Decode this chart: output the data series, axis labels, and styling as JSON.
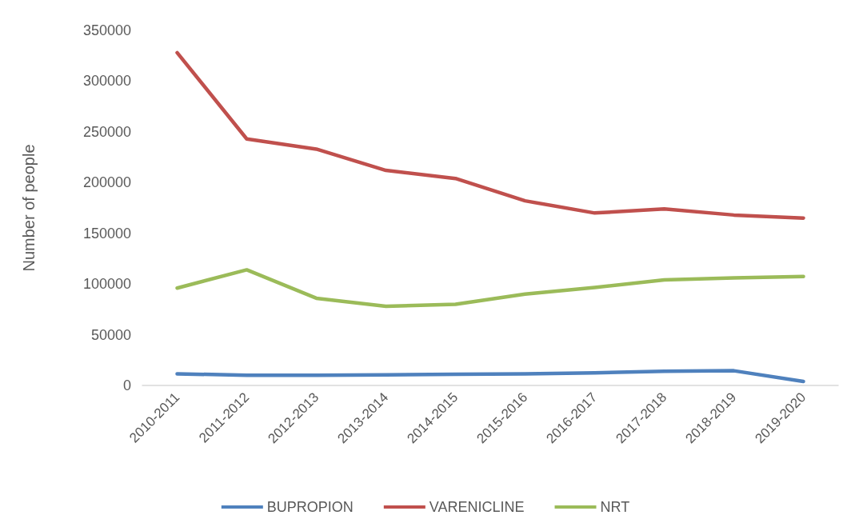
{
  "chart_data": {
    "type": "line",
    "ylabel": "Number of people",
    "categories": [
      "2010-2011",
      "2011-2012",
      "2012-2013",
      "2013-2014",
      "2014-2015",
      "2015-2016",
      "2016-2017",
      "2017-2018",
      "2018-2019",
      "2019-2020"
    ],
    "series": [
      {
        "name": "BUPROPION",
        "color": "#4f81bd",
        "values": [
          11500,
          10000,
          10000,
          10500,
          11000,
          11500,
          12500,
          14000,
          14500,
          4000
        ]
      },
      {
        "name": "VARENICLINE",
        "color": "#c0504d",
        "values": [
          328000,
          243000,
          233000,
          212000,
          204000,
          182000,
          170000,
          174000,
          168000,
          165000
        ]
      },
      {
        "name": "NRT",
        "color": "#9bbb59",
        "values": [
          96000,
          114000,
          86000,
          78000,
          80000,
          90000,
          96500,
          104000,
          106000,
          107500
        ]
      }
    ],
    "ylim": [
      0,
      350000
    ],
    "yticks": [
      0,
      50000,
      100000,
      150000,
      200000,
      250000,
      300000,
      350000
    ],
    "grid": false,
    "legend": "bottom",
    "marker": "none",
    "line_style": "solid"
  }
}
